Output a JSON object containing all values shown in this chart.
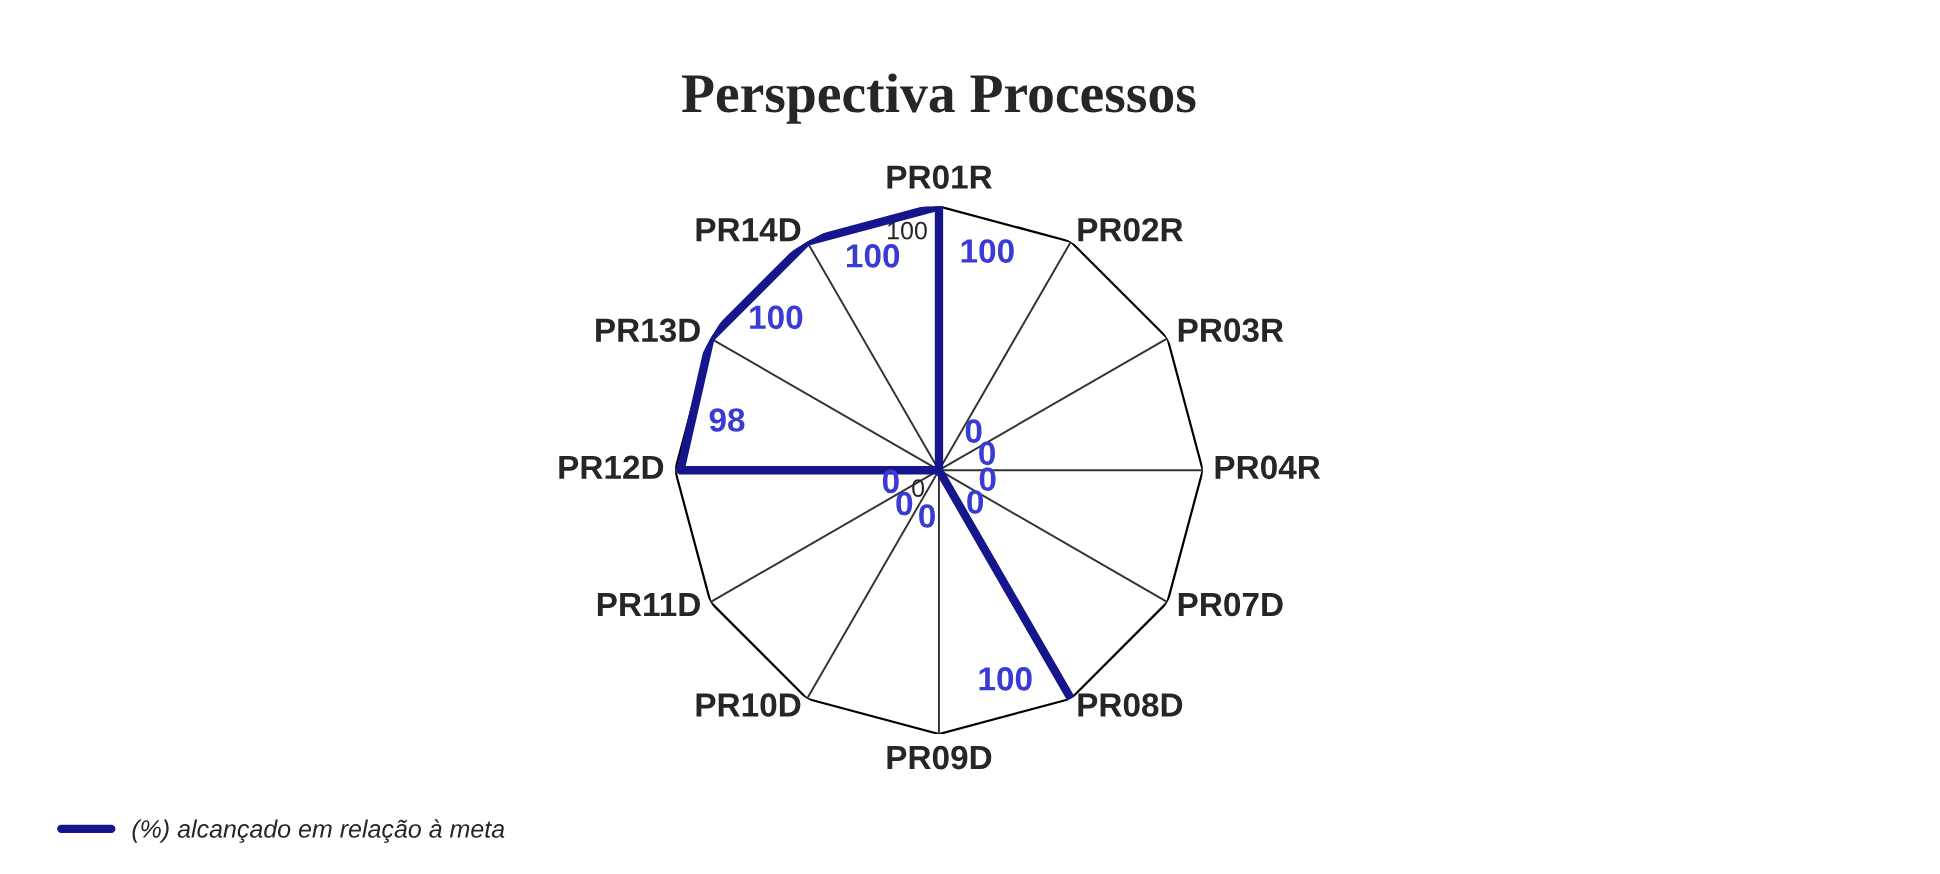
{
  "chart_data": {
    "type": "radar",
    "title": "Perspectiva Processos",
    "categories": [
      "PR01R",
      "PR02R",
      "PR03R",
      "PR04R",
      "PR07D",
      "PR08D",
      "PR09D",
      "PR10D",
      "PR11D",
      "PR12D",
      "PR13D",
      "PR14D"
    ],
    "series": [
      {
        "name": "(%) alcançado em relação à meta",
        "color": "#16168c",
        "values": [
          100,
          0,
          0,
          0,
          0,
          100,
          0,
          0,
          0,
          98,
          100,
          100
        ]
      }
    ],
    "ylim": [
      0,
      100
    ],
    "yticks": [
      0,
      100
    ],
    "data_labels": true,
    "legend": "bottom left",
    "grid": true
  }
}
